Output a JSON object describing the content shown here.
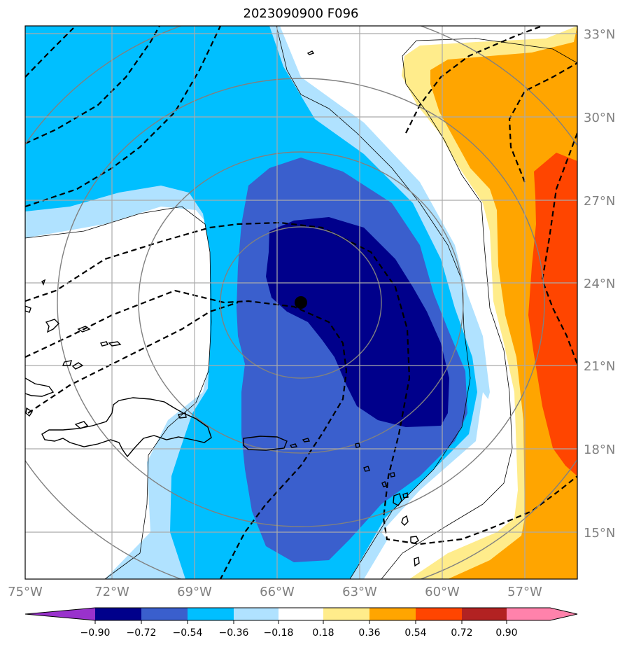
{
  "title": "2023090900 F096",
  "colors": {
    "n090": "#9932CC",
    "n072": "#00008B",
    "n054": "#3A5FCD",
    "n036": "#00BFFF",
    "n018": "#B0E2FF",
    "zero": "#FFFFFF",
    "p018": "#FFEC8B",
    "p036": "#FFA500",
    "p054": "#FF4500",
    "p072": "#B22222",
    "p090": "#FF82AB",
    "grid": "#AAAAAA",
    "rings": "#808080",
    "coast": "#000000"
  },
  "xtick_labels": [
    "75°W",
    "72°W",
    "69°W",
    "66°W",
    "63°W",
    "60°W",
    "57°W"
  ],
  "ytick_labels": [
    "33°N",
    "30°N",
    "27°N",
    "24°N",
    "21°N",
    "18°N",
    "15°N"
  ],
  "colorbar": {
    "ticks": [
      "−0.90",
      "−0.72",
      "−0.54",
      "−0.36",
      "−0.18",
      "0.18",
      "0.36",
      "0.54",
      "0.72",
      "0.90"
    ]
  },
  "storm_center": {
    "lon": -65.1,
    "lat": 23.3
  }
}
